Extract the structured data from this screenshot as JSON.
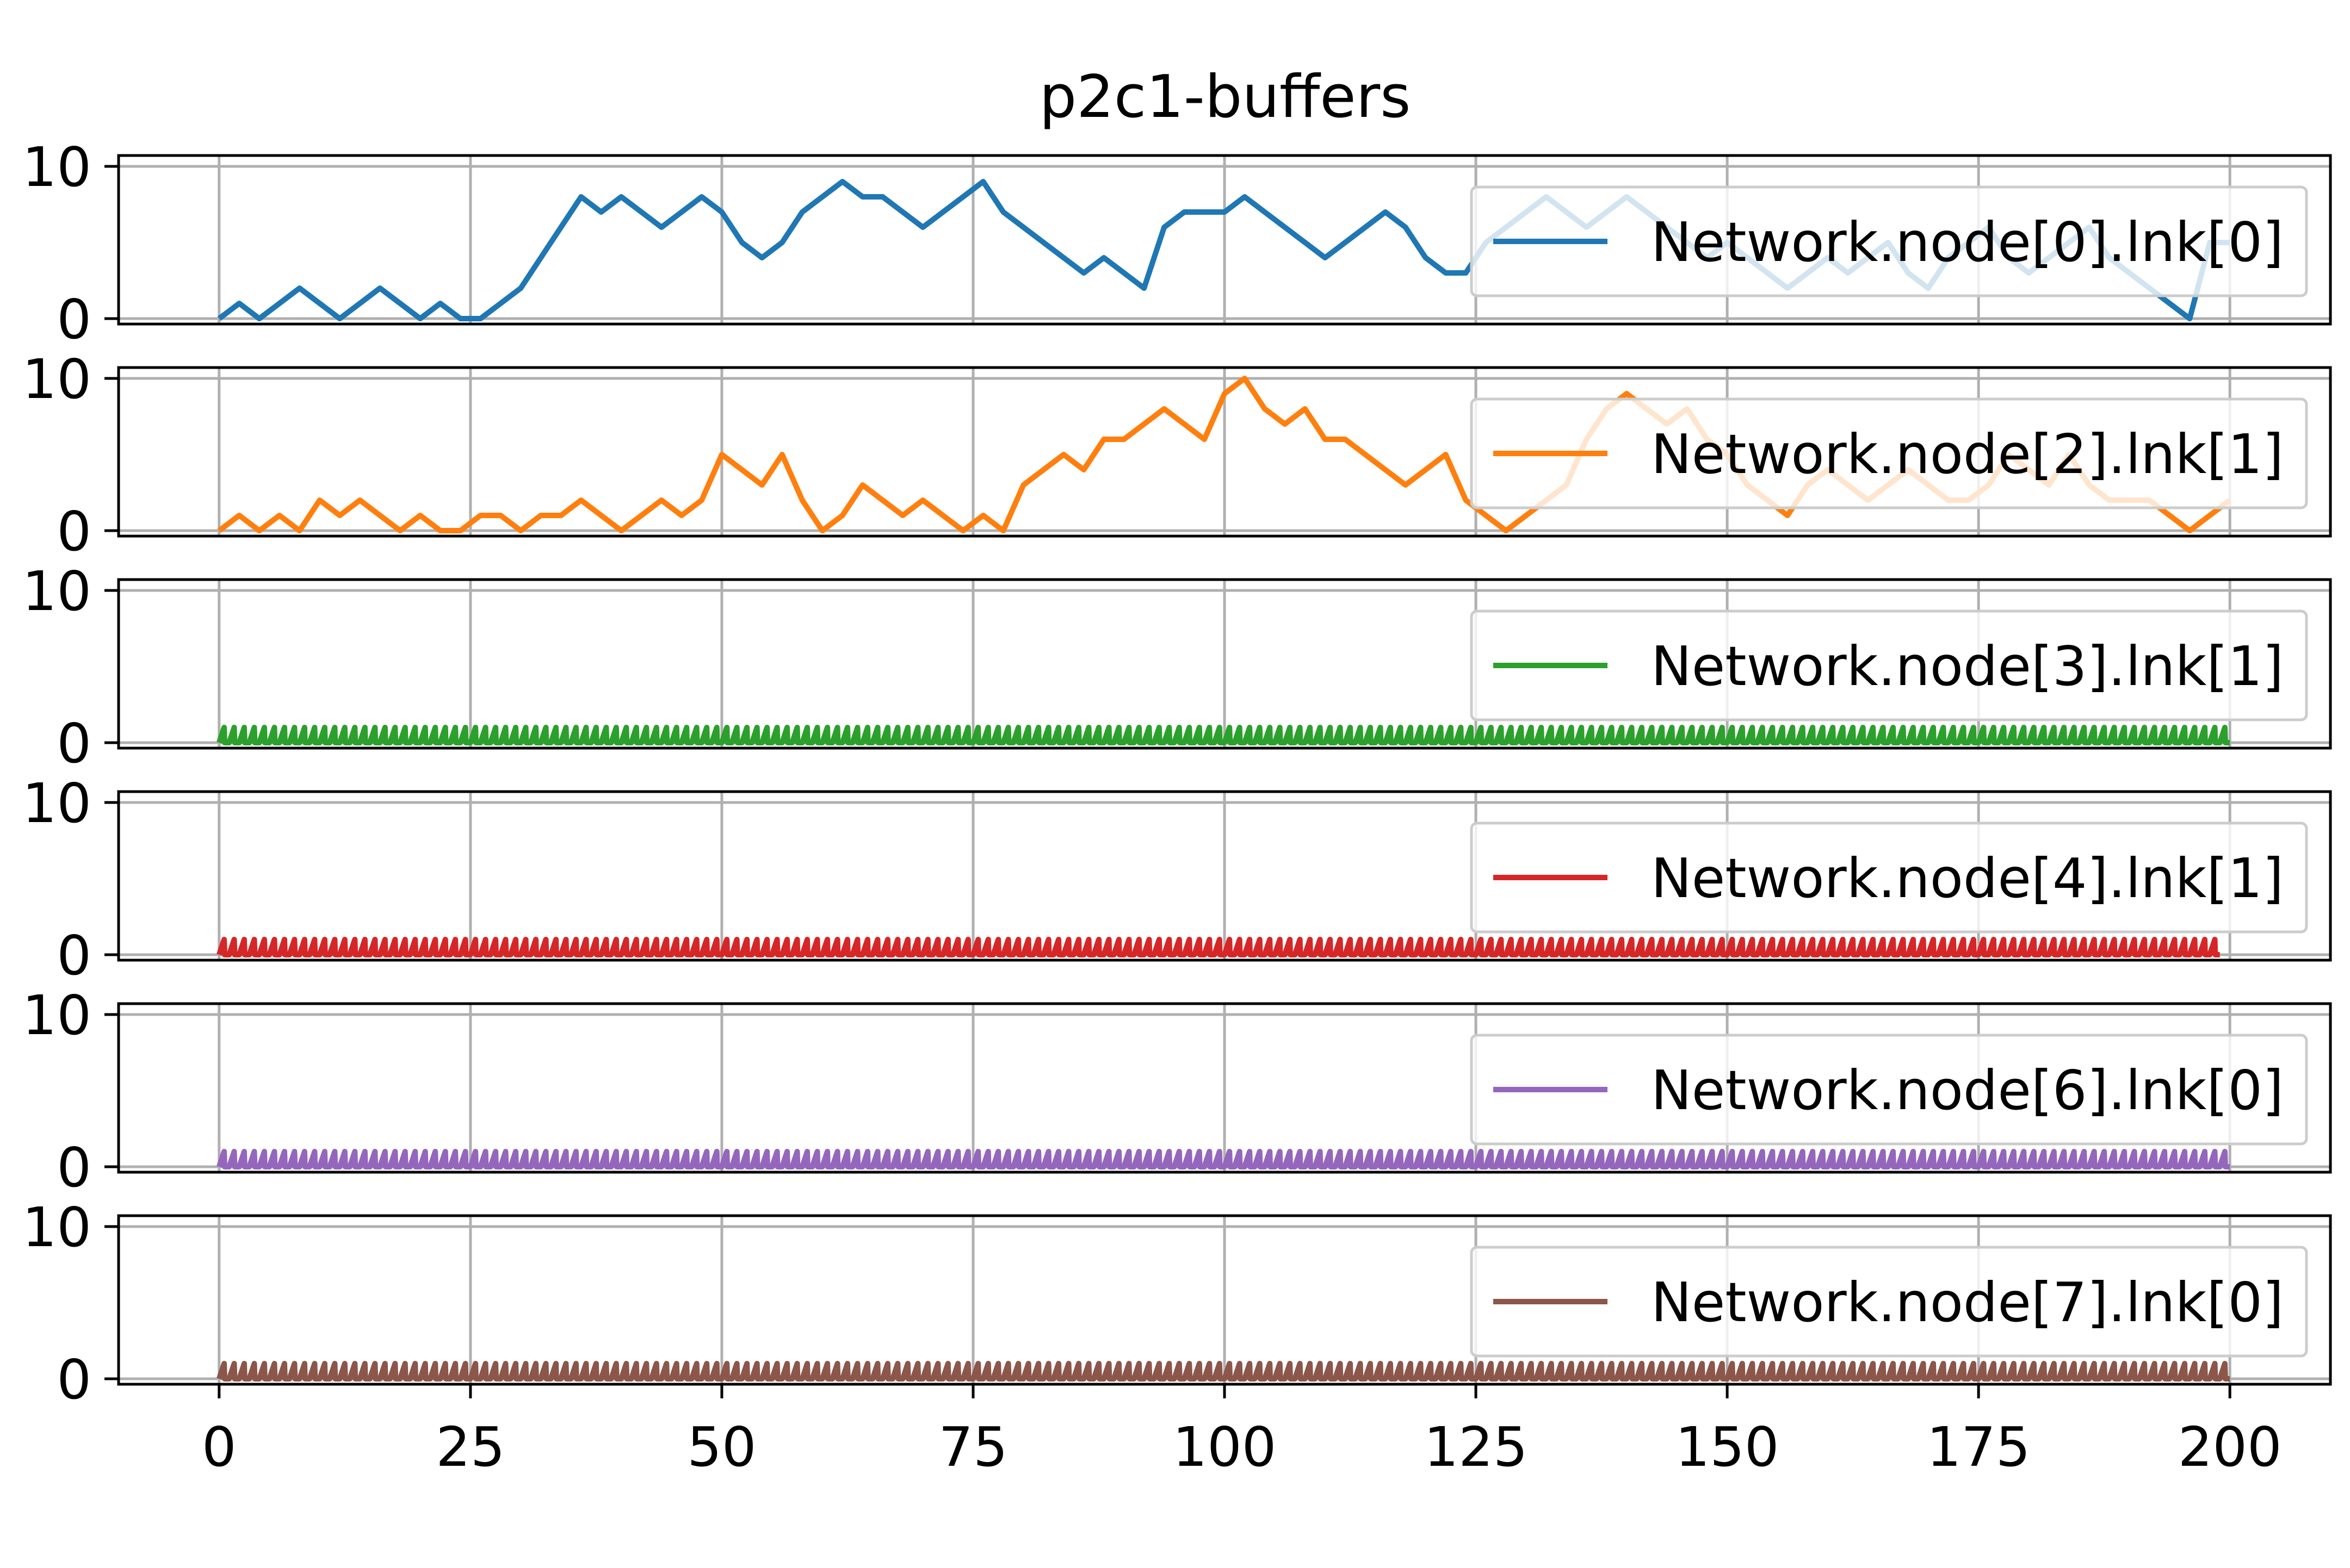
{
  "chart_data": {
    "type": "line",
    "title": "p2c1-buffers",
    "xlabel": "",
    "ylabel": "",
    "xlim": [
      -10,
      210
    ],
    "ylim": [
      0,
      11
    ],
    "x_ticks": [
      "0",
      "25",
      "50",
      "75",
      "100",
      "125",
      "150",
      "175",
      "200"
    ],
    "x_tick_values": [
      0,
      25,
      50,
      75,
      100,
      125,
      150,
      175,
      200
    ],
    "y_ticks": [
      "0",
      "10"
    ],
    "y_tick_values": [
      0,
      10
    ],
    "grid": true,
    "legend_placement": "upper right",
    "subplots": 6,
    "series": [
      {
        "name": "Network.node[0].lnk[0]",
        "color": "#1f77b4",
        "subplot": 0,
        "x": [
          0,
          2,
          4,
          6,
          8,
          10,
          12,
          14,
          16,
          18,
          20,
          22,
          24,
          26,
          28,
          30,
          32,
          34,
          36,
          38,
          40,
          42,
          44,
          46,
          48,
          50,
          52,
          54,
          56,
          58,
          60,
          62,
          64,
          66,
          68,
          70,
          72,
          74,
          76,
          78,
          80,
          82,
          84,
          86,
          88,
          90,
          92,
          94,
          96,
          98,
          100,
          102,
          104,
          106,
          108,
          110,
          112,
          114,
          116,
          118,
          120,
          122,
          124,
          126,
          128,
          130,
          132,
          134,
          136,
          138,
          140,
          142,
          144,
          146,
          148,
          150,
          152,
          154,
          156,
          158,
          160,
          162,
          164,
          166,
          168,
          170,
          172,
          174,
          176,
          178,
          180,
          182,
          184,
          186,
          188,
          190,
          192,
          194,
          196,
          198,
          200
        ],
        "y": [
          0,
          1,
          0,
          1,
          2,
          1,
          0,
          1,
          2,
          1,
          0,
          1,
          0,
          0,
          1,
          2,
          4,
          6,
          8,
          7,
          8,
          7,
          6,
          7,
          8,
          7,
          5,
          4,
          5,
          7,
          8,
          9,
          8,
          8,
          7,
          6,
          7,
          8,
          9,
          7,
          6,
          5,
          4,
          3,
          4,
          3,
          2,
          6,
          7,
          7,
          7,
          8,
          7,
          6,
          5,
          4,
          5,
          6,
          7,
          6,
          4,
          3,
          3,
          5,
          6,
          7,
          8,
          7,
          6,
          7,
          8,
          7,
          6,
          5,
          4,
          5,
          4,
          3,
          2,
          3,
          4,
          3,
          4,
          5,
          3,
          2,
          4,
          5,
          6,
          4,
          3,
          4,
          5,
          6,
          4,
          3,
          2,
          1,
          0,
          5,
          5
        ]
      },
      {
        "name": "Network.node[2].lnk[1]",
        "color": "#ff7f0e",
        "subplot": 1,
        "x": [
          0,
          2,
          4,
          6,
          8,
          10,
          12,
          14,
          16,
          18,
          20,
          22,
          24,
          26,
          28,
          30,
          32,
          34,
          36,
          38,
          40,
          42,
          44,
          46,
          48,
          50,
          52,
          54,
          56,
          58,
          60,
          62,
          64,
          66,
          68,
          70,
          72,
          74,
          76,
          78,
          80,
          82,
          84,
          86,
          88,
          90,
          92,
          94,
          96,
          98,
          100,
          102,
          104,
          106,
          108,
          110,
          112,
          114,
          116,
          118,
          120,
          122,
          124,
          126,
          128,
          130,
          132,
          134,
          136,
          138,
          140,
          142,
          144,
          146,
          148,
          150,
          152,
          154,
          156,
          158,
          160,
          162,
          164,
          166,
          168,
          170,
          172,
          174,
          176,
          178,
          180,
          182,
          184,
          186,
          188,
          190,
          192,
          194,
          196,
          198,
          200
        ],
        "y": [
          0,
          1,
          0,
          1,
          0,
          2,
          1,
          2,
          1,
          0,
          1,
          0,
          0,
          1,
          1,
          0,
          1,
          1,
          2,
          1,
          0,
          1,
          2,
          1,
          2,
          5,
          4,
          3,
          5,
          2,
          0,
          1,
          3,
          2,
          1,
          2,
          1,
          0,
          1,
          0,
          3,
          4,
          5,
          4,
          6,
          6,
          7,
          8,
          7,
          6,
          9,
          10,
          8,
          7,
          8,
          6,
          6,
          5,
          4,
          3,
          4,
          5,
          2,
          1,
          0,
          1,
          2,
          3,
          6,
          8,
          9,
          8,
          7,
          8,
          6,
          5,
          3,
          2,
          1,
          3,
          4,
          3,
          2,
          3,
          4,
          3,
          2,
          2,
          3,
          5,
          4,
          3,
          5,
          3,
          2,
          2,
          2,
          1,
          0,
          1,
          2
        ]
      },
      {
        "name": "Network.node[3].lnk[1]",
        "color": "#2ca02c",
        "subplot": 2,
        "level": 1,
        "x_start": 0,
        "x_end": 200,
        "period": 1
      },
      {
        "name": "Network.node[4].lnk[1]",
        "color": "#d62728",
        "subplot": 3,
        "level": 1,
        "x_start": 0,
        "x_end": 199,
        "period": 1
      },
      {
        "name": "Network.node[6].lnk[0]",
        "color": "#9467bd",
        "subplot": 4,
        "level": 1,
        "x_start": 0,
        "x_end": 200,
        "period": 1
      },
      {
        "name": "Network.node[7].lnk[0]",
        "color": "#8c564b",
        "subplot": 5,
        "level": 1,
        "x_start": 0,
        "x_end": 200,
        "period": 1
      }
    ]
  }
}
